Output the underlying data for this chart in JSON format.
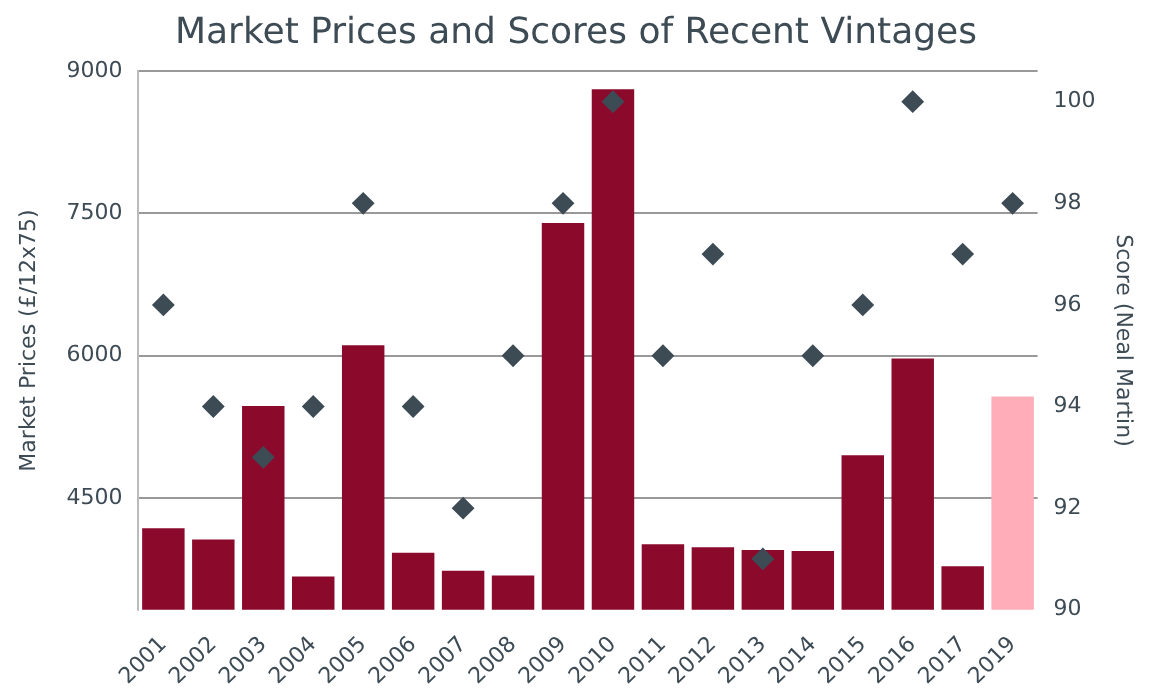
{
  "chart_data": {
    "type": "bar",
    "title": "Market Prices and Scores of Recent Vintages",
    "ylabel": "Market Prices (£/12x75)",
    "y2label": "Score (Neal Martin)",
    "categories": [
      "2001",
      "2002",
      "2003",
      "2004",
      "2005",
      "2006",
      "2007",
      "2008",
      "2009",
      "2010",
      "2011",
      "2012",
      "2013",
      "2014",
      "2015",
      "2016",
      "2017",
      "2019"
    ],
    "series": [
      {
        "colors": [
          "#8b0a2c",
          "#8b0a2c",
          "#8b0a2c",
          "#8b0a2c",
          "#8b0a2c",
          "#8b0a2c",
          "#8b0a2c",
          "#8b0a2c",
          "#8b0a2c",
          "#8b0a2c",
          "#8b0a2c",
          "#8b0a2c",
          "#8b0a2c",
          "#8b0a2c",
          "#8b0a2c",
          "#8b0a2c",
          "#8b0a2c",
          "#ffadb9"
        ],
        "values": [
          4180,
          4060,
          5470,
          3670,
          6110,
          3920,
          3730,
          3680,
          7400,
          8810,
          4010,
          3980,
          3950,
          3940,
          4950,
          5970,
          3780,
          5570
        ]
      },
      {
        "type": "scatter",
        "axis": "y2",
        "color": "#3d4b55",
        "values": [
          96,
          94,
          93,
          94,
          98,
          94,
          92,
          95,
          98,
          100,
          95,
          97,
          91,
          95,
          96,
          100,
          97,
          98
        ]
      }
    ],
    "ylim": [
      3320,
      9000
    ],
    "yticks": [
      4500,
      6000,
      7500,
      9000
    ],
    "y2lim": [
      90,
      100.6
    ],
    "y2ticks": [
      90,
      92,
      94,
      96,
      98,
      100
    ],
    "grid": "y",
    "marker": "diamond",
    "legend": false
  }
}
